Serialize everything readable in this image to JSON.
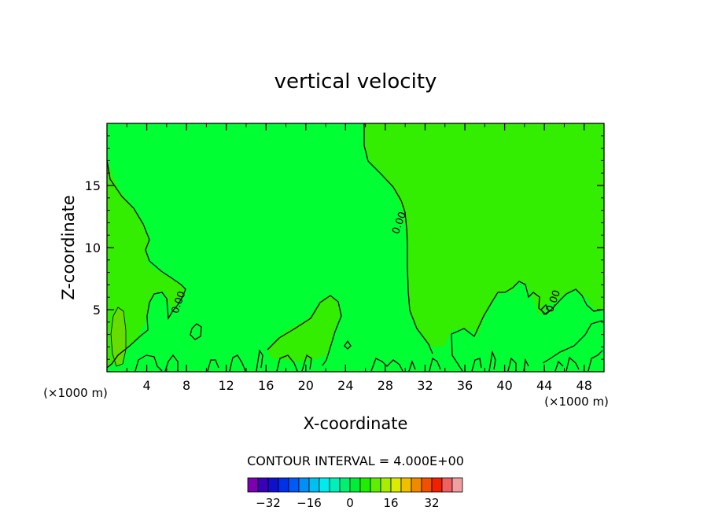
{
  "chart_data": {
    "type": "contour",
    "title": "vertical velocity",
    "xlabel": "X-coordinate",
    "ylabel": "Z-coordinate",
    "x_unit_left": "(×1000 m)",
    "x_unit_right": "(×1000 m)",
    "xlim": [
      0,
      50
    ],
    "ylim": [
      0,
      20
    ],
    "x_ticks": [
      4,
      8,
      12,
      16,
      20,
      24,
      28,
      32,
      36,
      40,
      44,
      48
    ],
    "y_ticks": [
      5,
      10,
      15
    ],
    "contour_labels": [
      {
        "text": "0.00",
        "x": 7.5,
        "z": 5.5
      },
      {
        "text": "0.00",
        "x": 29.7,
        "z": 11.9
      },
      {
        "text": "0.00",
        "x": 45.2,
        "z": 5.6
      }
    ],
    "contour_interval_label": "CONTOUR INTERVAL =  4.000E+00",
    "colorbar": {
      "colors": [
        "#7a00b0",
        "#3a00b8",
        "#1010c8",
        "#0030e8",
        "#005af5",
        "#0090f8",
        "#00c0f0",
        "#00ecec",
        "#00f0b8",
        "#00f070",
        "#00ee38",
        "#20ee00",
        "#60ee00",
        "#a8ee00",
        "#dcec00",
        "#f0c000",
        "#f08800",
        "#f05000",
        "#f02000",
        "#f06060",
        "#f0a0a0"
      ],
      "tick_values": [
        -32,
        -16,
        0,
        16,
        32
      ],
      "tick_labels": [
        "−32",
        "−16",
        "0",
        "16",
        "32"
      ],
      "vmin": -40,
      "vmax": 44
    },
    "fill_colors": {
      "background": "#00ff33",
      "positive": "#33ee00",
      "weak_positive": "#66dd00"
    },
    "grid": false
  }
}
